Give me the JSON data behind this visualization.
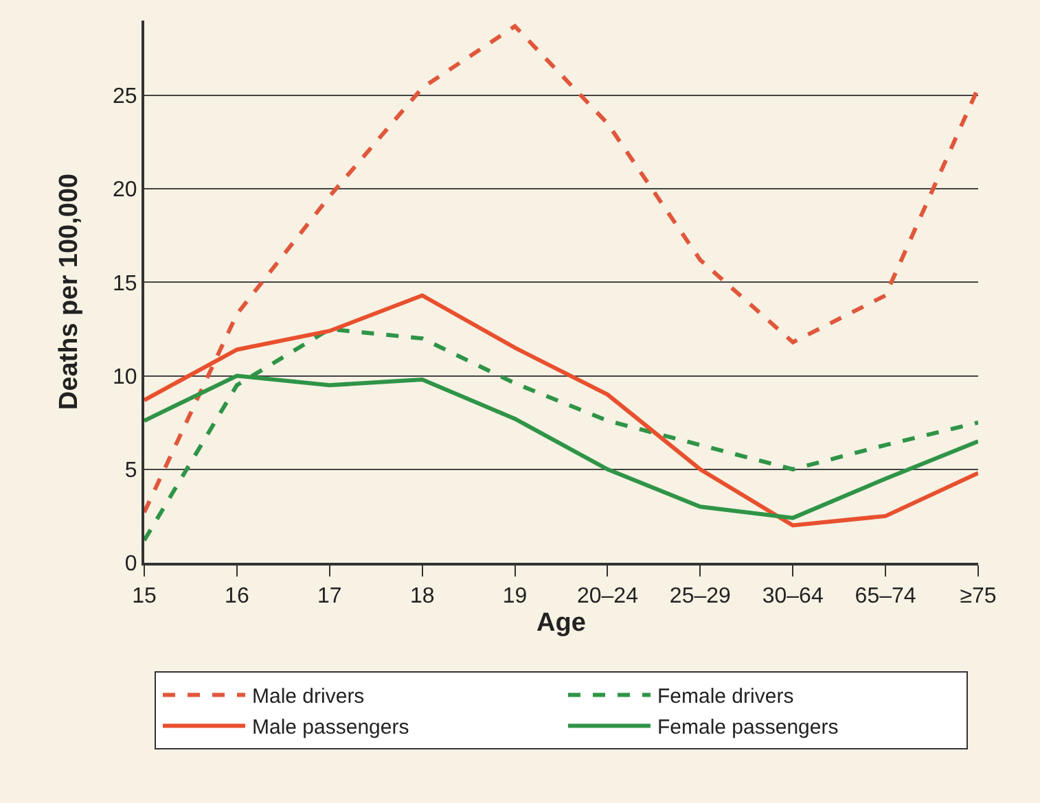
{
  "chart_data": {
    "type": "line",
    "xlabel": "Age",
    "ylabel": "Deaths per 100,000",
    "categories": [
      "15",
      "16",
      "17",
      "18",
      "19",
      "20–24",
      "25–29",
      "30–64",
      "65–74",
      "≥75"
    ],
    "series": [
      {
        "name": "Male drivers",
        "color": "#e0573b",
        "line_style": "dashed",
        "values": [
          2.7,
          13.3,
          19.6,
          25.4,
          28.7,
          23.5,
          16.2,
          11.8,
          14.3,
          25.4
        ]
      },
      {
        "name": "Female drivers",
        "color": "#2f9447",
        "line_style": "dashed",
        "values": [
          1.2,
          9.5,
          12.5,
          12.0,
          9.6,
          7.6,
          6.3,
          5.0,
          6.3,
          7.5
        ]
      },
      {
        "name": "Male passengers",
        "color": "#e8502e",
        "line_style": "solid",
        "values": [
          8.7,
          11.4,
          12.4,
          14.3,
          11.5,
          9.0,
          5.0,
          2.0,
          2.5,
          4.8
        ]
      },
      {
        "name": "Female passengers",
        "color": "#2f9447",
        "line_style": "solid",
        "values": [
          7.6,
          10.0,
          9.5,
          9.8,
          7.7,
          5.0,
          3.0,
          2.4,
          4.5,
          6.5
        ]
      }
    ],
    "ylim": [
      0,
      29
    ],
    "yticks": [
      0,
      5,
      10,
      15,
      20,
      25
    ],
    "grid": "y",
    "legend": "bottom",
    "marker": "none"
  }
}
